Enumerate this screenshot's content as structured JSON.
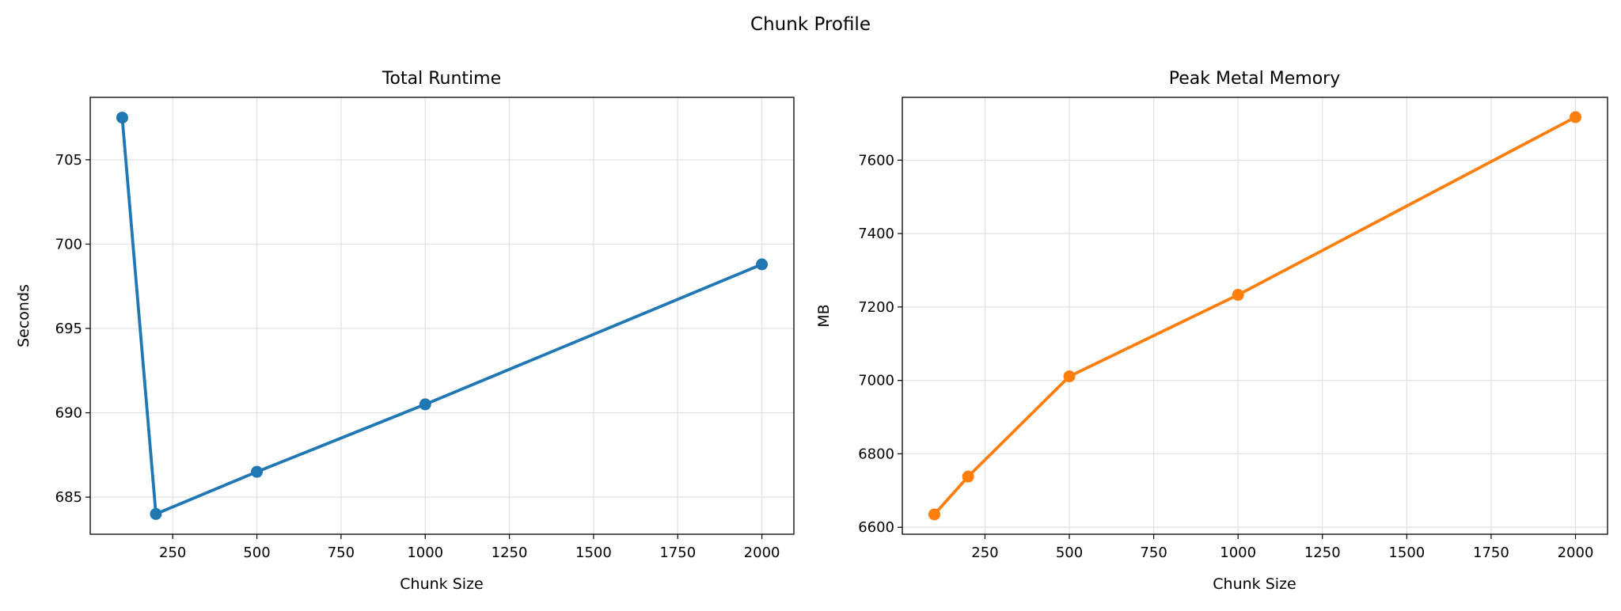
{
  "figure_title": "Chunk Profile",
  "chart_data": [
    {
      "type": "line",
      "title": "Total Runtime",
      "xlabel": "Chunk Size",
      "ylabel": "Seconds",
      "x": [
        100,
        200,
        500,
        1000,
        2000
      ],
      "series": [
        {
          "values": [
            707.5,
            684.0,
            686.5,
            690.5,
            698.8
          ],
          "color": "#1f77b4",
          "marker": "circle"
        }
      ],
      "xlim": [
        5,
        2095
      ],
      "ylim": [
        682.8,
        708.7
      ],
      "xticks": [
        250,
        500,
        750,
        1000,
        1250,
        1500,
        1750,
        2000
      ],
      "yticks": [
        685,
        690,
        695,
        700,
        705
      ],
      "grid": true
    },
    {
      "type": "line",
      "title": "Peak Metal Memory",
      "xlabel": "Chunk Size",
      "ylabel": "MB",
      "x": [
        100,
        200,
        500,
        1000,
        2000
      ],
      "series": [
        {
          "values": [
            6635,
            6738,
            7011,
            7233,
            7717
          ],
          "color": "#ff7f0e",
          "marker": "circle"
        }
      ],
      "xlim": [
        5,
        2095
      ],
      "ylim": [
        6581,
        7771
      ],
      "xticks": [
        250,
        500,
        750,
        1000,
        1250,
        1500,
        1750,
        2000
      ],
      "yticks": [
        6600,
        6800,
        7000,
        7200,
        7400,
        7600
      ],
      "grid": true
    }
  ]
}
